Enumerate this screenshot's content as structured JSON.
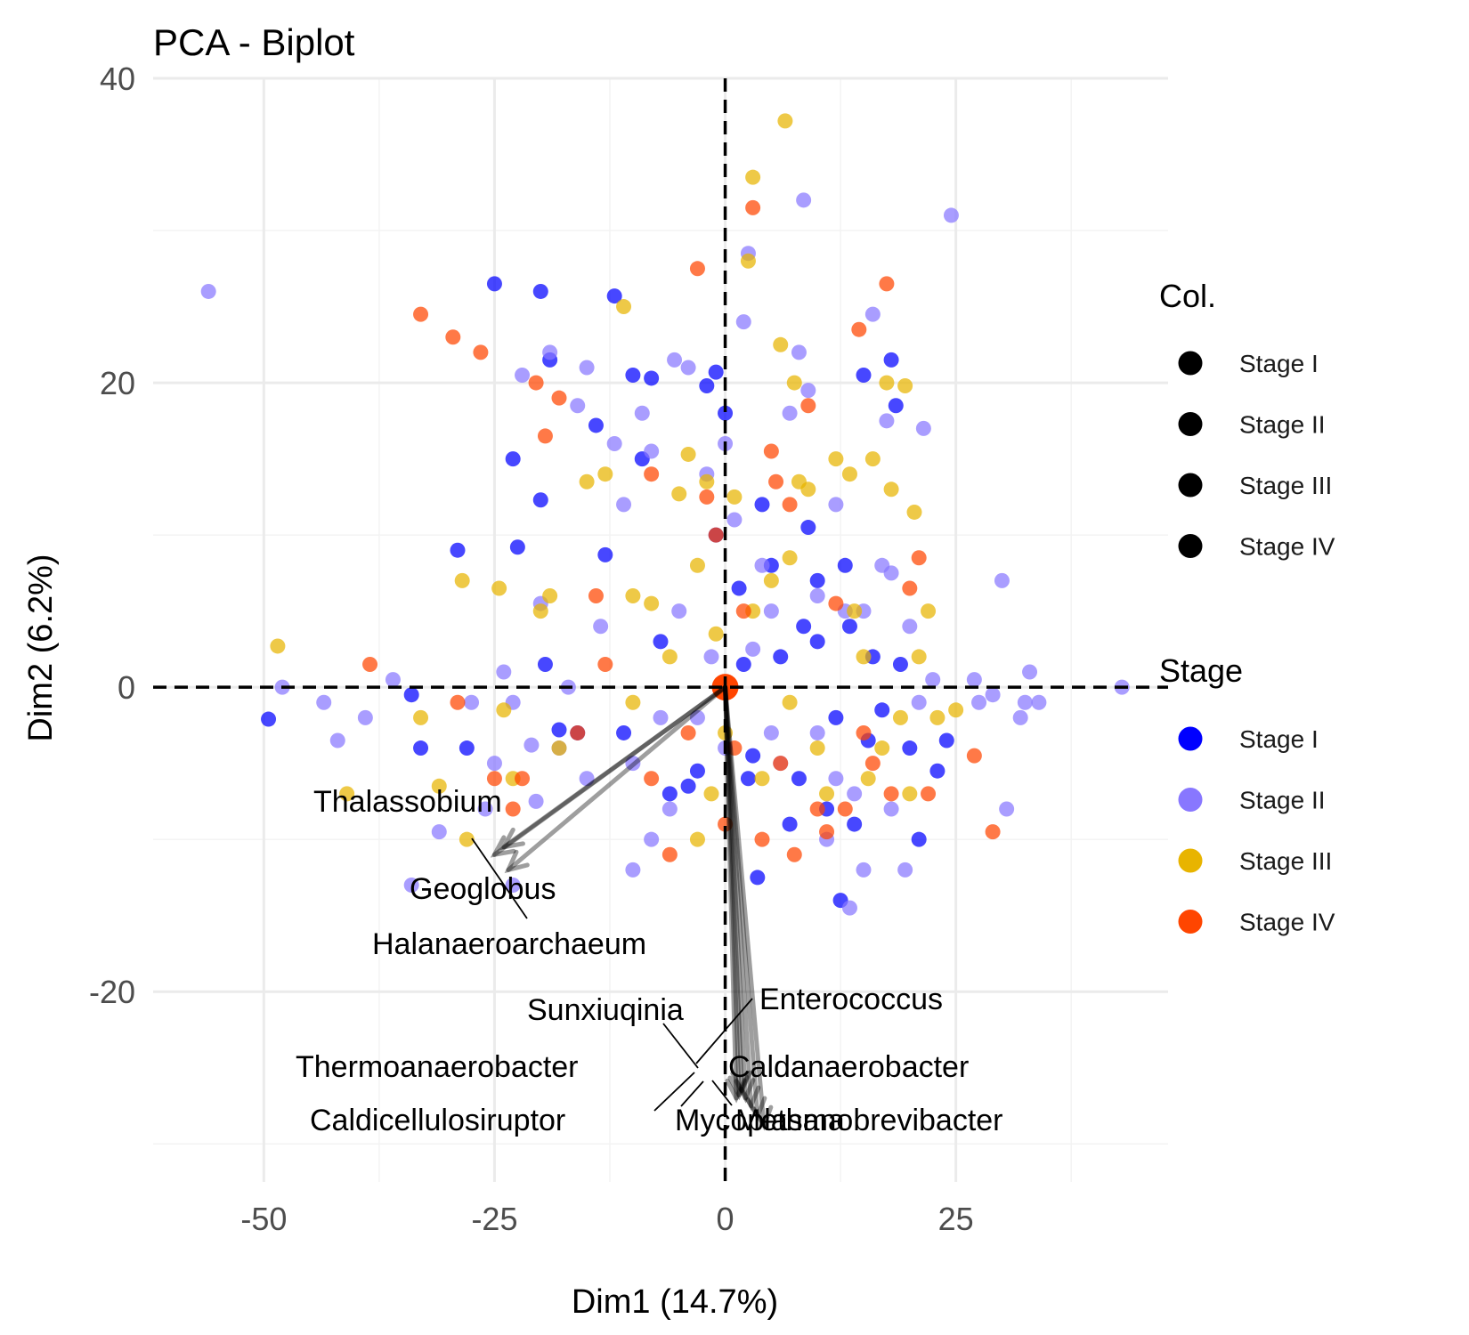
{
  "chart_data": {
    "type": "scatter",
    "title": "PCA - Biplot",
    "xlabel": "Dim1 (14.7%)",
    "ylabel": "Dim2 (6.2%)",
    "xlim": [
      -62,
      48
    ],
    "ylim": [
      -32.5,
      40
    ],
    "xticks": [
      -50,
      -25,
      0,
      25
    ],
    "xtick_labels": [
      "-50",
      "-25",
      "0",
      "25"
    ],
    "yticks": [
      -20,
      0,
      20,
      40
    ],
    "ytick_labels": [
      "-20",
      "0",
      "20",
      "40"
    ],
    "grid": true,
    "reference_lines": {
      "x": 0,
      "y": 0,
      "style": "dashed"
    },
    "legend_position": "right",
    "legends": [
      {
        "title": "Col.",
        "entries": [
          {
            "label": "Stage I",
            "color": "#000000"
          },
          {
            "label": "Stage II",
            "color": "#000000"
          },
          {
            "label": "Stage III",
            "color": "#000000"
          },
          {
            "label": "Stage IV",
            "color": "#000000"
          }
        ]
      },
      {
        "title": "Stage",
        "entries": [
          {
            "label": "Stage I",
            "color": "#0000FF"
          },
          {
            "label": "Stage II",
            "color": "#8877FF"
          },
          {
            "label": "Stage III",
            "color": "#E8B400"
          },
          {
            "label": "Stage IV",
            "color": "#FF4500"
          }
        ]
      }
    ],
    "series": [
      {
        "name": "Stage I",
        "color": "#0000FF",
        "points": [
          [
            -49.5,
            -2.1
          ],
          [
            -34,
            -0.5
          ],
          [
            -33,
            -4
          ],
          [
            -29,
            9
          ],
          [
            -28,
            -4
          ],
          [
            -25,
            26.5
          ],
          [
            -23,
            15
          ],
          [
            -22.5,
            9.2
          ],
          [
            -20,
            12.3
          ],
          [
            -20,
            26
          ],
          [
            -19.5,
            1.5
          ],
          [
            -19,
            21.5
          ],
          [
            -18,
            -2.8
          ],
          [
            -16,
            -3
          ],
          [
            -14,
            17.2
          ],
          [
            -13,
            8.7
          ],
          [
            -12,
            25.7
          ],
          [
            -10,
            20.5
          ],
          [
            -9,
            15
          ],
          [
            -8,
            20.3
          ],
          [
            -6,
            -7
          ],
          [
            -3,
            -5.5
          ],
          [
            -2,
            19.8
          ],
          [
            -1,
            20.7
          ],
          [
            -1,
            10
          ],
          [
            0,
            18
          ],
          [
            1.5,
            6.5
          ],
          [
            2,
            1.5
          ],
          [
            3,
            -4.5
          ],
          [
            4,
            12
          ],
          [
            5,
            8
          ],
          [
            6,
            2
          ],
          [
            8,
            -6
          ],
          [
            9,
            10.5
          ],
          [
            10,
            3
          ],
          [
            11,
            -8
          ],
          [
            12,
            -2
          ],
          [
            13,
            8
          ],
          [
            13.5,
            4
          ],
          [
            14,
            -9
          ],
          [
            15,
            20.5
          ],
          [
            15.5,
            -3.5
          ],
          [
            16,
            2
          ],
          [
            17,
            -1.5
          ],
          [
            18,
            21.5
          ],
          [
            18.5,
            18.5
          ],
          [
            19,
            1.5
          ],
          [
            20,
            -4
          ],
          [
            21,
            -10
          ],
          [
            23,
            -5.5
          ],
          [
            24,
            -3.5
          ],
          [
            12.5,
            -14
          ],
          [
            10,
            7
          ],
          [
            7,
            -9
          ],
          [
            3.5,
            -12.5
          ],
          [
            -4,
            -6.5
          ],
          [
            -11,
            -3
          ],
          [
            -7,
            3
          ],
          [
            2.5,
            -6
          ],
          [
            8.5,
            4
          ]
        ]
      },
      {
        "name": "Stage II",
        "color": "#8877FF",
        "points": [
          [
            -56,
            26
          ],
          [
            -48,
            0
          ],
          [
            -43.5,
            -1
          ],
          [
            -42,
            -3.5
          ],
          [
            -39,
            -2
          ],
          [
            -36,
            0.5
          ],
          [
            -34,
            -13
          ],
          [
            -31,
            -9.5
          ],
          [
            -27.5,
            -1
          ],
          [
            -26,
            -8
          ],
          [
            -25,
            -5
          ],
          [
            -24,
            1
          ],
          [
            -23,
            -1
          ],
          [
            -23,
            -13
          ],
          [
            -22,
            20.5
          ],
          [
            -21,
            -3.8
          ],
          [
            -20.5,
            -7.5
          ],
          [
            -20,
            5.5
          ],
          [
            -19,
            22
          ],
          [
            -18,
            -4
          ],
          [
            -16,
            18.5
          ],
          [
            -15,
            21
          ],
          [
            -13.5,
            4
          ],
          [
            -12,
            16
          ],
          [
            -11,
            12
          ],
          [
            -10,
            -12
          ],
          [
            -9,
            18
          ],
          [
            -8,
            15.5
          ],
          [
            -7,
            -2
          ],
          [
            -6,
            -8
          ],
          [
            -5.5,
            21.5
          ],
          [
            -4,
            21
          ],
          [
            -3,
            -2
          ],
          [
            -2,
            14
          ],
          [
            -1.5,
            2
          ],
          [
            0,
            16
          ],
          [
            1,
            11
          ],
          [
            2,
            24
          ],
          [
            2.5,
            28.5
          ],
          [
            3,
            2.5
          ],
          [
            4,
            8
          ],
          [
            5,
            -3
          ],
          [
            6,
            -5
          ],
          [
            7,
            18
          ],
          [
            8,
            22
          ],
          [
            8.5,
            32
          ],
          [
            9,
            19.5
          ],
          [
            10,
            6
          ],
          [
            11,
            -10
          ],
          [
            12,
            12
          ],
          [
            13,
            5
          ],
          [
            13.5,
            -14.5
          ],
          [
            14,
            -7
          ],
          [
            15,
            -12
          ],
          [
            16,
            24.5
          ],
          [
            17,
            8
          ],
          [
            17.5,
            17.5
          ],
          [
            18,
            7.5
          ],
          [
            19.5,
            -12
          ],
          [
            20,
            4
          ],
          [
            21,
            -1
          ],
          [
            21.5,
            17
          ],
          [
            22.5,
            0.5
          ],
          [
            24.5,
            31
          ],
          [
            27,
            0.5
          ],
          [
            27.5,
            -1
          ],
          [
            29,
            -0.5
          ],
          [
            30,
            7
          ],
          [
            30.5,
            -8
          ],
          [
            32,
            -2
          ],
          [
            32.5,
            -1
          ],
          [
            33,
            1
          ],
          [
            34,
            -1
          ],
          [
            43,
            0
          ],
          [
            15,
            5
          ],
          [
            10,
            -3
          ],
          [
            5,
            5
          ],
          [
            0,
            -4
          ],
          [
            -5,
            5
          ],
          [
            -10,
            -5
          ],
          [
            -15,
            -6
          ],
          [
            -17,
            0
          ],
          [
            -8,
            -10
          ],
          [
            12,
            -6
          ],
          [
            18,
            -8
          ]
        ]
      },
      {
        "name": "Stage III",
        "color": "#E8B400",
        "points": [
          [
            -48.5,
            2.7
          ],
          [
            -41,
            -7
          ],
          [
            -33,
            -2
          ],
          [
            -31,
            -6.5
          ],
          [
            -28.5,
            7
          ],
          [
            -28,
            -10
          ],
          [
            -24.5,
            6.5
          ],
          [
            -24,
            -1.5
          ],
          [
            -23,
            -6
          ],
          [
            -20,
            5
          ],
          [
            -19,
            6
          ],
          [
            -18,
            -4
          ],
          [
            -15,
            13.5
          ],
          [
            -13,
            14
          ],
          [
            -11,
            25
          ],
          [
            -10,
            6
          ],
          [
            -8,
            5.5
          ],
          [
            -5,
            12.7
          ],
          [
            -4,
            15.3
          ],
          [
            -3,
            8
          ],
          [
            -2,
            13.5
          ],
          [
            -1.5,
            -7
          ],
          [
            -1,
            3.5
          ],
          [
            0,
            -3
          ],
          [
            1,
            12.5
          ],
          [
            2.5,
            28
          ],
          [
            3,
            33.5
          ],
          [
            4,
            -6
          ],
          [
            5,
            7
          ],
          [
            6,
            22.5
          ],
          [
            6.5,
            37.2
          ],
          [
            7,
            8.5
          ],
          [
            7.5,
            20
          ],
          [
            8,
            13.5
          ],
          [
            9,
            13
          ],
          [
            10,
            -4
          ],
          [
            11,
            -7
          ],
          [
            12,
            15
          ],
          [
            13.5,
            14
          ],
          [
            14,
            5
          ],
          [
            15,
            2
          ],
          [
            15.5,
            -6
          ],
          [
            16,
            15
          ],
          [
            17,
            -4
          ],
          [
            17.5,
            20
          ],
          [
            18,
            13
          ],
          [
            19,
            -2
          ],
          [
            19.5,
            19.8
          ],
          [
            20,
            -7
          ],
          [
            20.5,
            11.5
          ],
          [
            21,
            2
          ],
          [
            22,
            5
          ],
          [
            23,
            -2
          ],
          [
            25,
            -1.5
          ],
          [
            -3,
            -10
          ],
          [
            -6,
            2
          ],
          [
            -10,
            -1
          ],
          [
            3,
            5
          ],
          [
            7,
            -1
          ]
        ]
      },
      {
        "name": "Stage IV",
        "color": "#FF4500",
        "points": [
          [
            -38.5,
            1.5
          ],
          [
            -33,
            24.5
          ],
          [
            -29.5,
            23
          ],
          [
            -29,
            -1
          ],
          [
            -26.5,
            22
          ],
          [
            -25,
            -6
          ],
          [
            -23,
            -8
          ],
          [
            -22,
            -6
          ],
          [
            -20.5,
            20
          ],
          [
            -19.5,
            16.5
          ],
          [
            -18,
            19
          ],
          [
            -16,
            -3
          ],
          [
            -14,
            6
          ],
          [
            -13,
            1.5
          ],
          [
            -8,
            14
          ],
          [
            -6,
            -11
          ],
          [
            -3,
            27.5
          ],
          [
            -2,
            12.5
          ],
          [
            -1,
            10
          ],
          [
            0,
            -9
          ],
          [
            1,
            -4
          ],
          [
            2,
            5
          ],
          [
            3,
            31.5
          ],
          [
            4,
            -10
          ],
          [
            5,
            15.5
          ],
          [
            5.5,
            13.5
          ],
          [
            7,
            12
          ],
          [
            7.5,
            -11
          ],
          [
            9,
            18.5
          ],
          [
            10,
            -8
          ],
          [
            11,
            -9.5
          ],
          [
            12,
            5.5
          ],
          [
            13,
            -8
          ],
          [
            14.5,
            23.5
          ],
          [
            15,
            -3
          ],
          [
            16,
            -5
          ],
          [
            17.5,
            26.5
          ],
          [
            18,
            -7
          ],
          [
            20,
            6.5
          ],
          [
            21,
            8.5
          ],
          [
            22,
            -7
          ],
          [
            27,
            -4.5
          ],
          [
            29,
            -9.5
          ],
          [
            0,
            0
          ],
          [
            -4,
            -3
          ],
          [
            6,
            -5
          ],
          [
            -8,
            -6
          ]
        ]
      }
    ],
    "variables": [
      {
        "name": "Thalassobium",
        "x": -25,
        "y": -11
      },
      {
        "name": "Geoglobus",
        "x": -23.5,
        "y": -12
      },
      {
        "name": "Halanaeroarchaeum",
        "x": -24,
        "y": -10.5
      },
      {
        "name": "Sunxiuqinia",
        "x": 1.8,
        "y": -26.5
      },
      {
        "name": "Enterococcus",
        "x": 2.2,
        "y": -27
      },
      {
        "name": "Thermoanaerobacter",
        "x": 1.5,
        "y": -26.8
      },
      {
        "name": "Caldanaerobacter",
        "x": 2.8,
        "y": -27.5
      },
      {
        "name": "Caldicellulosiruptor",
        "x": 1.2,
        "y": -27
      },
      {
        "name": "Mycoplasma",
        "x": 3.5,
        "y": -28.2
      },
      {
        "name": "Methanobrevibacter",
        "x": 4.2,
        "y": -28.8
      }
    ]
  }
}
